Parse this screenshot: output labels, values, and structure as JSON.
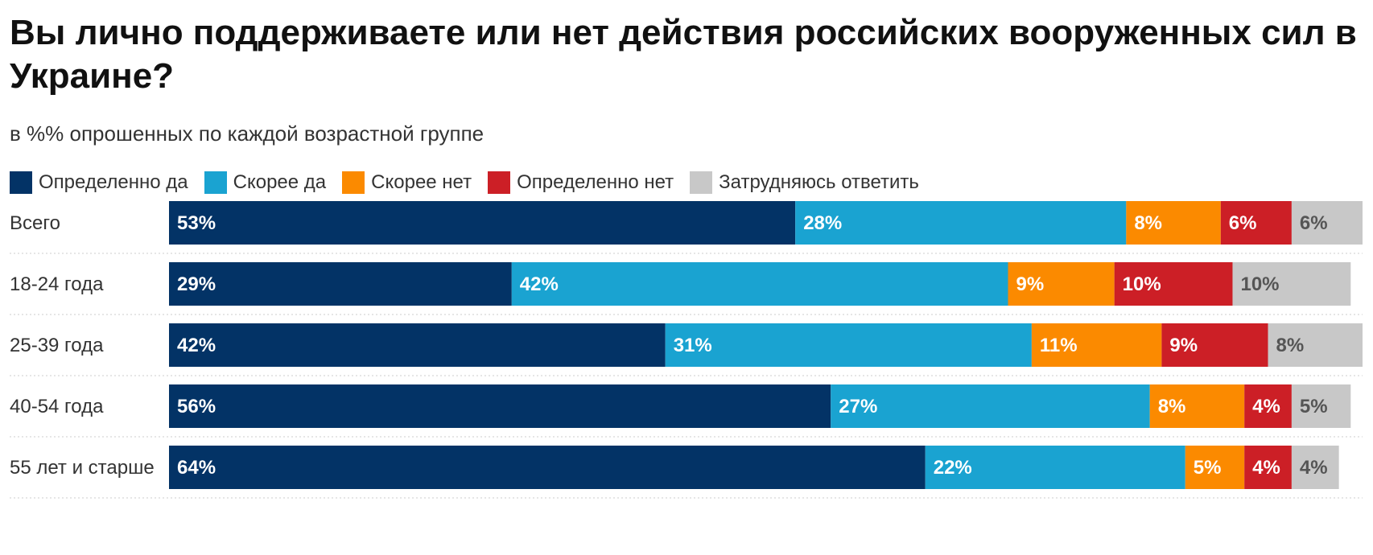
{
  "title": "Вы лично поддерживаете или нет действия российских вооруженных сил в Украине?",
  "subtitle": "в %% опрошенных по каждой возрастной группе",
  "chart_data": {
    "type": "bar",
    "orientation": "horizontal",
    "stacked": true,
    "title": "Вы лично поддерживаете или нет действия российских вооруженных сил в Украине?",
    "subtitle": "в %% опрошенных по каждой возрастной группе",
    "legend_position": "top-left",
    "categories": [
      "Всего",
      "18-24 года",
      "25-39 года",
      "40-54 года",
      "55 лет и старше"
    ],
    "series": [
      {
        "name": "Определенно да",
        "color": "#033366",
        "label_color": "#ffffff",
        "values": [
          53,
          29,
          42,
          56,
          64
        ]
      },
      {
        "name": "Скорее да",
        "color": "#1aa3d1",
        "label_color": "#ffffff",
        "values": [
          28,
          42,
          31,
          27,
          22
        ]
      },
      {
        "name": "Скорее нет",
        "color": "#fb8a00",
        "label_color": "#ffffff",
        "values": [
          8,
          9,
          11,
          8,
          5
        ]
      },
      {
        "name": "Определенно нет",
        "color": "#cc1f26",
        "label_color": "#ffffff",
        "values": [
          6,
          10,
          9,
          4,
          4
        ]
      },
      {
        "name": "Затрудняюсь ответить",
        "color": "#c8c8c8",
        "label_color": "#555555",
        "values": [
          6,
          10,
          8,
          5,
          4
        ]
      }
    ],
    "value_suffix": "%",
    "xlim": [
      0,
      101
    ]
  }
}
